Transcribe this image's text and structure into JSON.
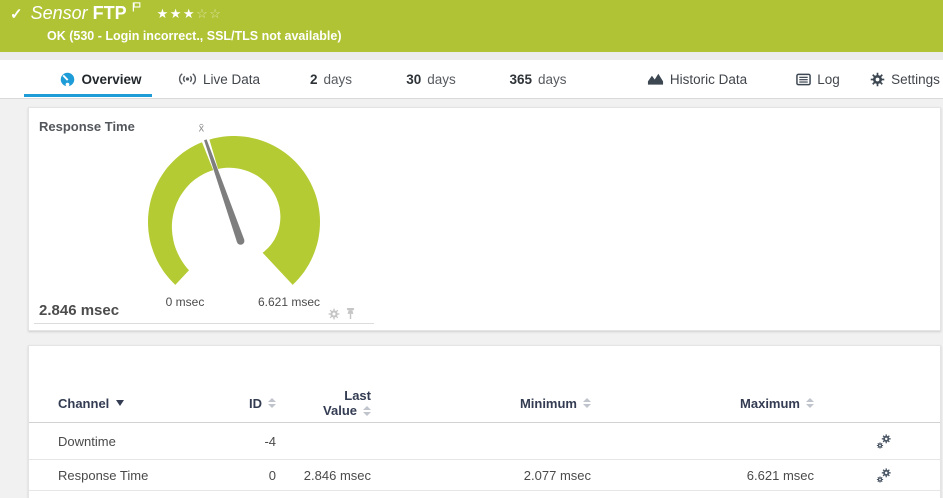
{
  "colors": {
    "status_green": "#b0c334",
    "gauge_green": "#b5cb34",
    "tab_active_blue": "#1e9cd7",
    "needle_gray": "#7e7e7e"
  },
  "header": {
    "check": "✓",
    "title_prefix": "Sensor",
    "title_name": "FTP",
    "stars_filled": "★★★",
    "stars_empty": "☆☆",
    "status_text": "OK (530 - Login incorrect., SSL/TLS not available)"
  },
  "tabs": [
    {
      "label": "Overview"
    },
    {
      "label": "Live Data"
    },
    {
      "num": "2",
      "unit": "days"
    },
    {
      "num": "30",
      "unit": "days"
    },
    {
      "num": "365",
      "unit": "days"
    },
    {
      "label": "Historic Data"
    },
    {
      "label": "Log"
    },
    {
      "label": "Settings"
    }
  ],
  "gauge": {
    "title": "Response Time",
    "min": 0,
    "max": 6.621,
    "value": 2.846,
    "min_label": "0 msec",
    "max_label": "6.621 msec",
    "value_label": "2.846 msec",
    "mean_marker": "x̄",
    "color": "#b5cb34",
    "needle_color": "#7e7e7e"
  },
  "table": {
    "col_channel": "Channel",
    "col_id": "ID",
    "col_last_1": "Last",
    "col_last_2": "Value",
    "col_min": "Minimum",
    "col_max": "Maximum",
    "rows": [
      {
        "channel": "Downtime",
        "id": "-4",
        "last": "",
        "min": "",
        "max": ""
      },
      {
        "channel": "Response Time",
        "id": "0",
        "last": "2.846 msec",
        "min": "2.077 msec",
        "max": "6.621 msec"
      }
    ]
  }
}
